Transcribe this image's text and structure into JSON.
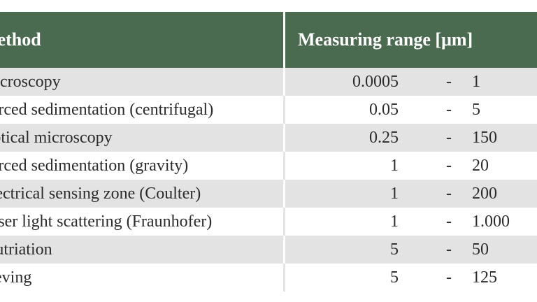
{
  "table": {
    "headers": {
      "method": "Method",
      "range": "Measuring range [μm]"
    },
    "rows": [
      {
        "method": "Microscopy",
        "min": "0.0005",
        "dash": "-",
        "max": "1"
      },
      {
        "method": "Forced sedimentation (centrifugal)",
        "min": "0.05",
        "dash": "-",
        "max": "5"
      },
      {
        "method": "Optical microscopy",
        "min": "0.25",
        "dash": "-",
        "max": "150"
      },
      {
        "method": "Forced sedimentation (gravity)",
        "min": "1",
        "dash": "-",
        "max": "20"
      },
      {
        "method": "Electrical sensing zone (Coulter)",
        "min": "1",
        "dash": "-",
        "max": "200"
      },
      {
        "method": "Laser light scattering (Fraunhofer)",
        "min": "1",
        "dash": "-",
        "max": "1.000"
      },
      {
        "method": "Elutriation",
        "min": "5",
        "dash": "-",
        "max": "50"
      },
      {
        "method": "Sieving",
        "min": "5",
        "dash": "-",
        "max": "125"
      }
    ]
  },
  "colors": {
    "header_bg": "#4a6b4f",
    "row_shade": "#e3e3e3",
    "row_plain": "#ffffff"
  }
}
